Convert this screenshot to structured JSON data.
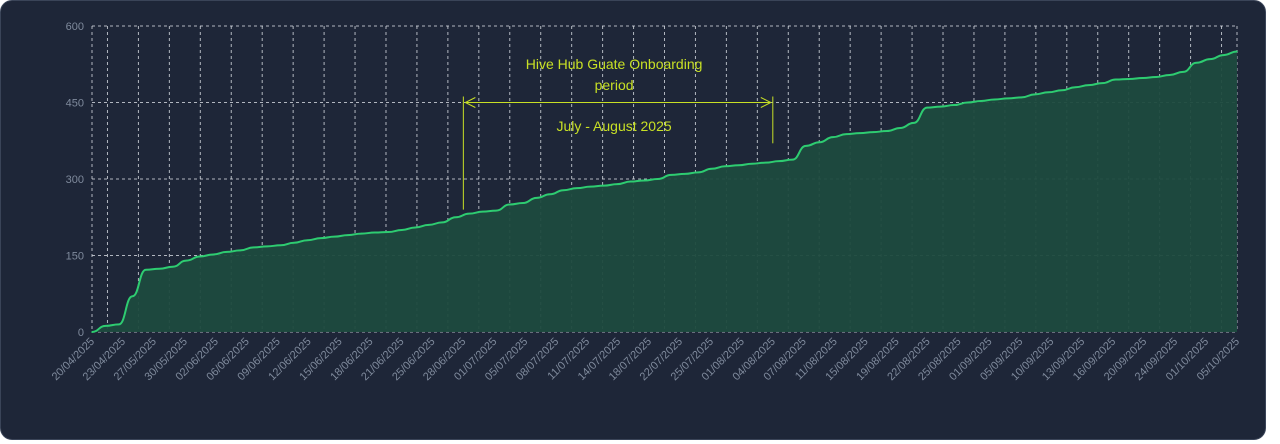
{
  "chart_data": {
    "type": "area",
    "title": "",
    "xlabel": "",
    "ylabel": "",
    "ylim": [
      0,
      600
    ],
    "y_ticks": [
      0,
      150,
      300,
      450,
      600
    ],
    "grid": true,
    "x_tick_labels": [
      "20/04/2025",
      "23/04/2025",
      "27/05/2025",
      "30/05/2025",
      "02/06/2025",
      "06/06/2025",
      "09/06/2025",
      "12/06/2025",
      "15/06/2025",
      "18/06/2025",
      "21/06/2025",
      "25/06/2025",
      "28/06/2025",
      "01/07/2025",
      "05/07/2025",
      "08/07/2025",
      "11/07/2025",
      "14/07/2025",
      "18/07/2025",
      "22/07/2025",
      "25/07/2025",
      "01/08/2025",
      "04/08/2025",
      "07/08/2025",
      "11/08/2025",
      "15/08/2025",
      "19/08/2025",
      "22/08/2025",
      "25/08/2025",
      "01/09/2025",
      "05/09/2025",
      "10/09/2025",
      "13/09/2025",
      "16/09/2025",
      "20/09/2025",
      "24/09/2025",
      "01/10/2025",
      "05/10/2025"
    ],
    "series": [
      {
        "values": [
          0,
          12,
          15,
          70,
          122,
          124,
          128,
          140,
          148,
          152,
          157,
          160,
          166,
          168,
          170,
          175,
          180,
          184,
          187,
          190,
          193,
          195,
          196,
          200,
          205,
          210,
          215,
          225,
          232,
          236,
          238,
          250,
          253,
          263,
          270,
          278,
          282,
          285,
          287,
          290,
          295,
          297,
          300,
          308,
          310,
          313,
          320,
          325,
          327,
          330,
          332,
          335,
          338,
          365,
          372,
          382,
          388,
          390,
          392,
          394,
          400,
          410,
          440,
          442,
          445,
          450,
          453,
          456,
          458,
          460,
          466,
          470,
          474,
          480,
          484,
          488,
          495,
          496,
          498,
          500,
          504,
          510,
          528,
          535,
          543,
          550
        ]
      }
    ],
    "annotation": {
      "text_line1": "Hive Hub Guate Onboarding",
      "text_line2": "period",
      "text_line3": "July - August 2025",
      "start_tick": "28/06/2025",
      "end_tick": "04/08/2025",
      "y_value": 450
    },
    "colors": {
      "line": "#2ecc71",
      "fill": "#1e4a3e",
      "annotation": "#c8e025",
      "grid": "#d8dce2",
      "tick_text": "#7f8a9c",
      "background": "#1e2638"
    }
  }
}
